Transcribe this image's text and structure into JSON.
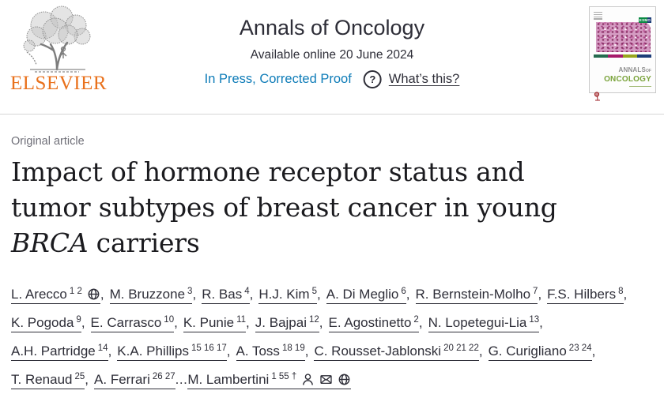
{
  "header": {
    "publisher": {
      "name": "ELSEVIER",
      "logo": "elsevier-tree",
      "brand_orange": "#e9711c"
    },
    "journal_title": "Annals of Oncology",
    "availability": "Available online 20 June 2024",
    "status_link": "In Press, Corrected Proof",
    "help_icon": "?",
    "help_link": "What’s this?",
    "colors": {
      "link_blue": "#0e7cb8",
      "text": "#2e2e38",
      "divider": "#d6d6d6"
    }
  },
  "cover": {
    "annals": "ANNALS",
    "of": "OF",
    "oncology": "ONCOLOGY",
    "esmo": "ESMO",
    "bar_colors": [
      "#256b4f",
      "#a6196a",
      "#98a51e",
      "#1c3d78"
    ],
    "green": "#7aa33b",
    "histology_pink": "#d49bc2"
  },
  "article": {
    "type_label": "Original article",
    "title_line1": "Impact of hormone receptor status and",
    "title_line2": "tumor subtypes of breast cancer in young",
    "title_italic": "BRCA",
    "title_rest": " carriers"
  },
  "authors": {
    "separator": ",",
    "ellipsis": "...",
    "list": [
      {
        "name": "L. Arecco",
        "sup": "1 2",
        "icons": [
          "globe"
        ]
      },
      {
        "name": "M. Bruzzone",
        "sup": "3"
      },
      {
        "name": "R. Bas",
        "sup": "4"
      },
      {
        "name": "H.J. Kim",
        "sup": "5"
      },
      {
        "name": "A. Di Meglio",
        "sup": "6"
      },
      {
        "name": "R. Bernstein-Molho",
        "sup": "7"
      },
      {
        "name": "F.S. Hilbers",
        "sup": "8"
      },
      {
        "name": "K. Pogoda",
        "sup": "9"
      },
      {
        "name": "E. Carrasco",
        "sup": "10"
      },
      {
        "name": "K. Punie",
        "sup": "11"
      },
      {
        "name": "J. Bajpai",
        "sup": "12"
      },
      {
        "name": "E. Agostinetto",
        "sup": "2"
      },
      {
        "name": "N. Lopetegui-Lia",
        "sup": "13"
      },
      {
        "name": "A.H. Partridge",
        "sup": "14"
      },
      {
        "name": "K.A. Phillips",
        "sup": "15 16 17"
      },
      {
        "name": "A. Toss",
        "sup": "18 19"
      },
      {
        "name": "C. Rousset-Jablonski",
        "sup": "20 21 22"
      },
      {
        "name": "G. Curigliano",
        "sup": "23 24"
      },
      {
        "name": "T. Renaud",
        "sup": "25"
      },
      {
        "name": "A. Ferrari",
        "sup": "26 27",
        "ellipsis": true
      },
      {
        "name": "M. Lambertini",
        "sup": "1 55 †",
        "icons": [
          "person",
          "envelope",
          "globe"
        ]
      }
    ]
  }
}
